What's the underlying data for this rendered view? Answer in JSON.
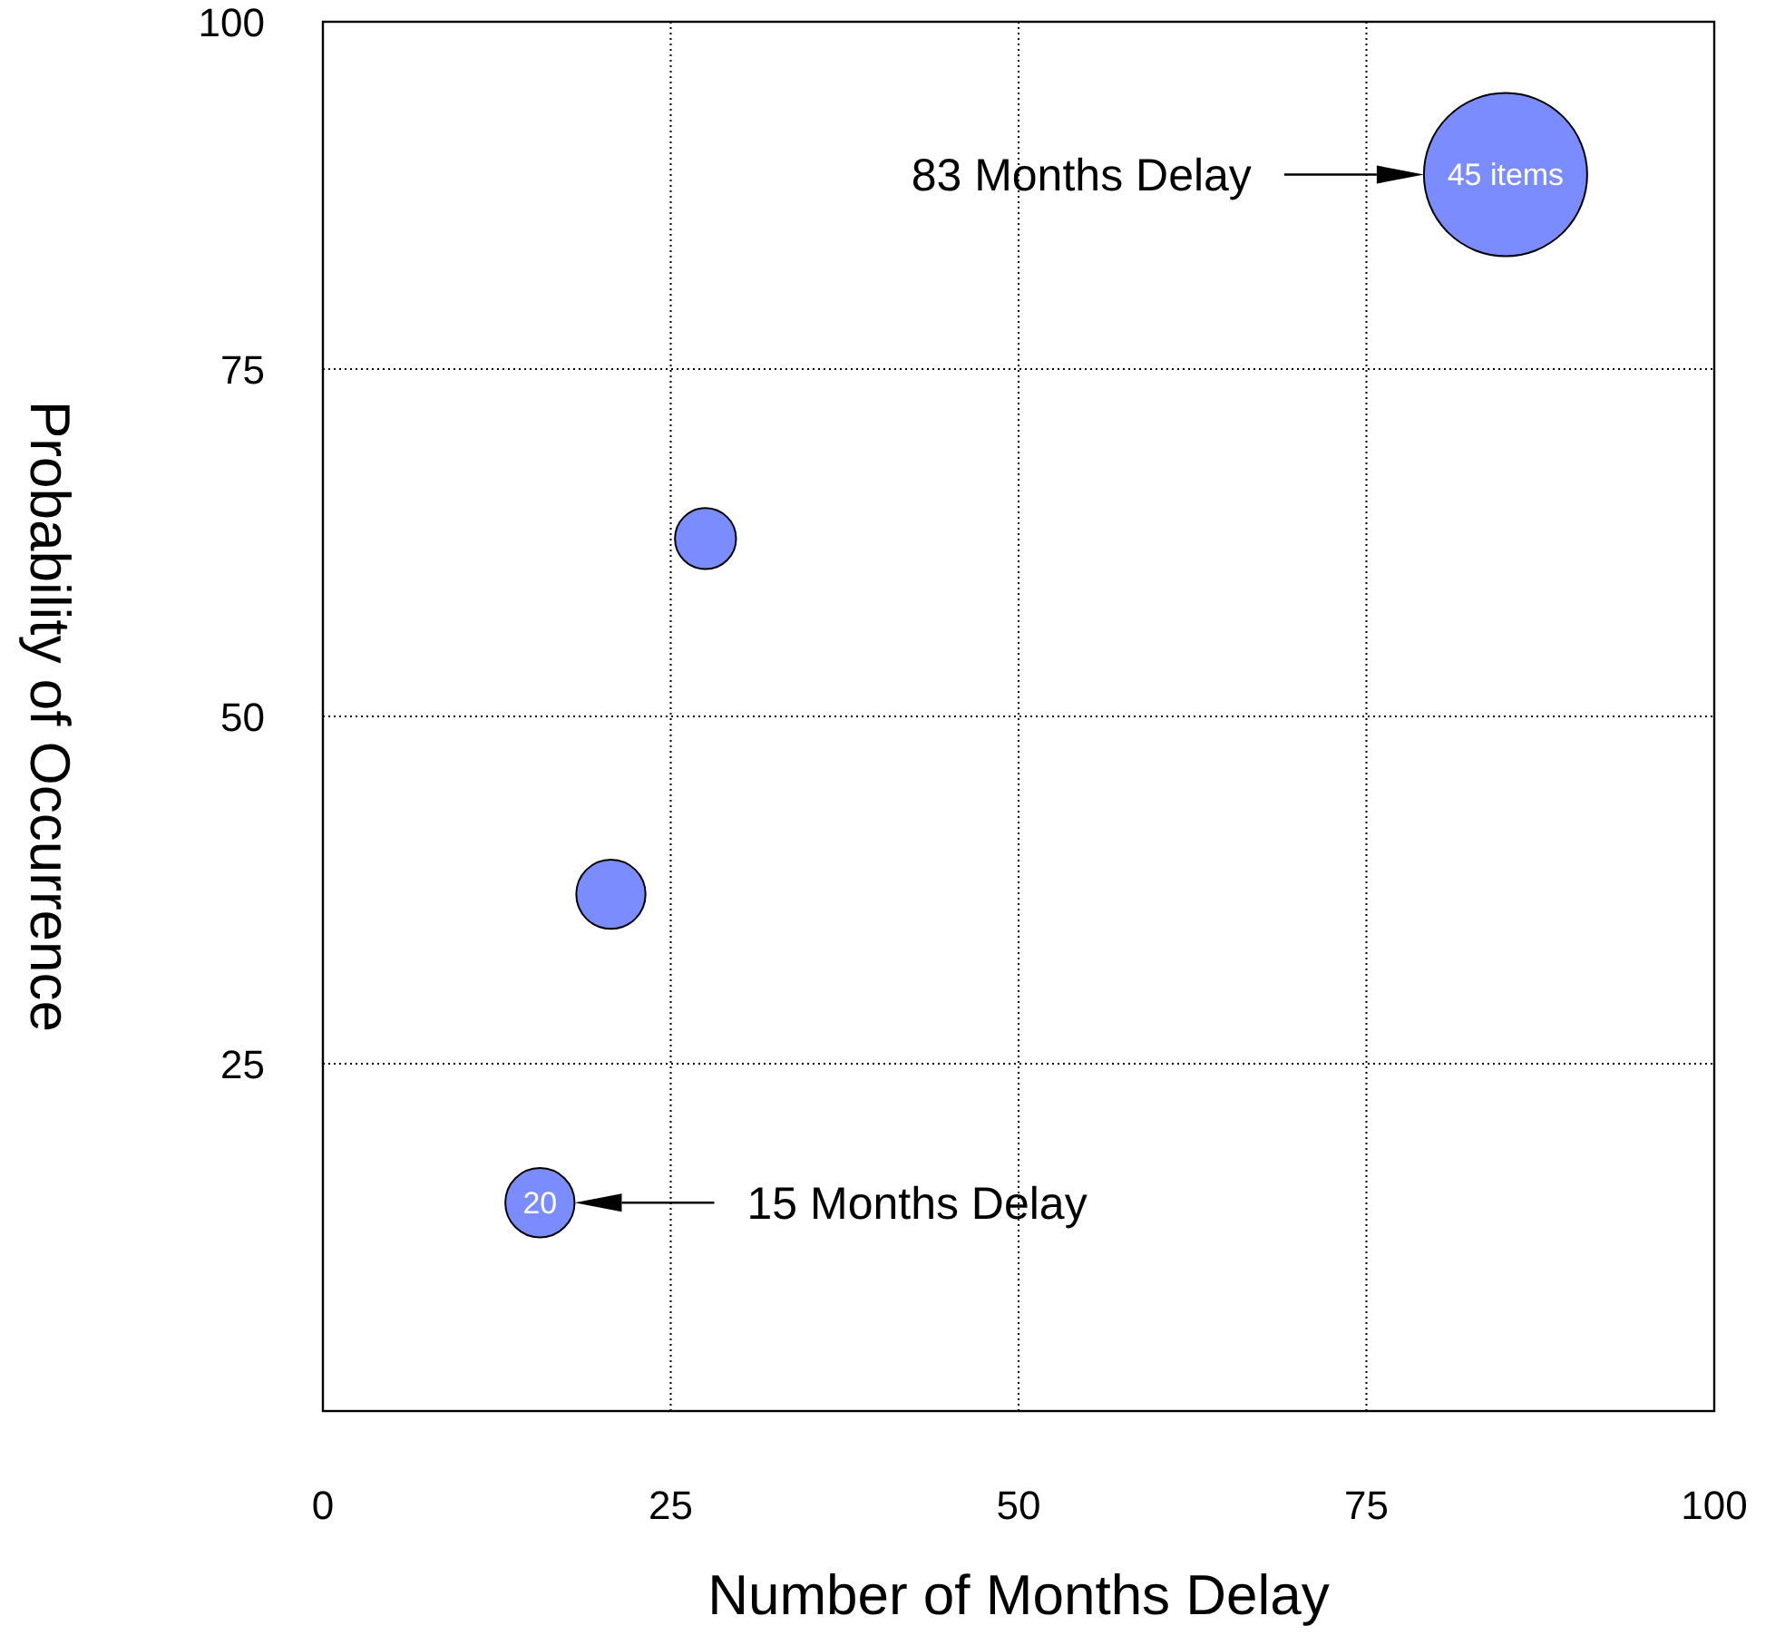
{
  "chart_data": {
    "type": "bubble",
    "xlabel": "Number of  Months Delay",
    "ylabel": "Probability of Occurrence",
    "x": [
      85,
      27.5,
      20.7,
      15.6
    ],
    "values": [
      89,
      62.8,
      37.2,
      15
    ],
    "sizes": [
      1,
      0.14,
      0.18,
      0.18
    ],
    "color": "#7b8cff",
    "xlim": [
      0,
      100
    ],
    "xticks": [
      0,
      25,
      50,
      75,
      100
    ],
    "ylim": [
      0,
      100
    ],
    "yticks": [
      25,
      50,
      75,
      100
    ],
    "grid": true,
    "annotations": [
      "83 Months Delay",
      {
        "text": "45 items",
        "x": 85,
        "y": 89
      },
      {
        "text": "20",
        "x": 15.6,
        "y": 15
      },
      "15 Months Delay"
    ]
  }
}
